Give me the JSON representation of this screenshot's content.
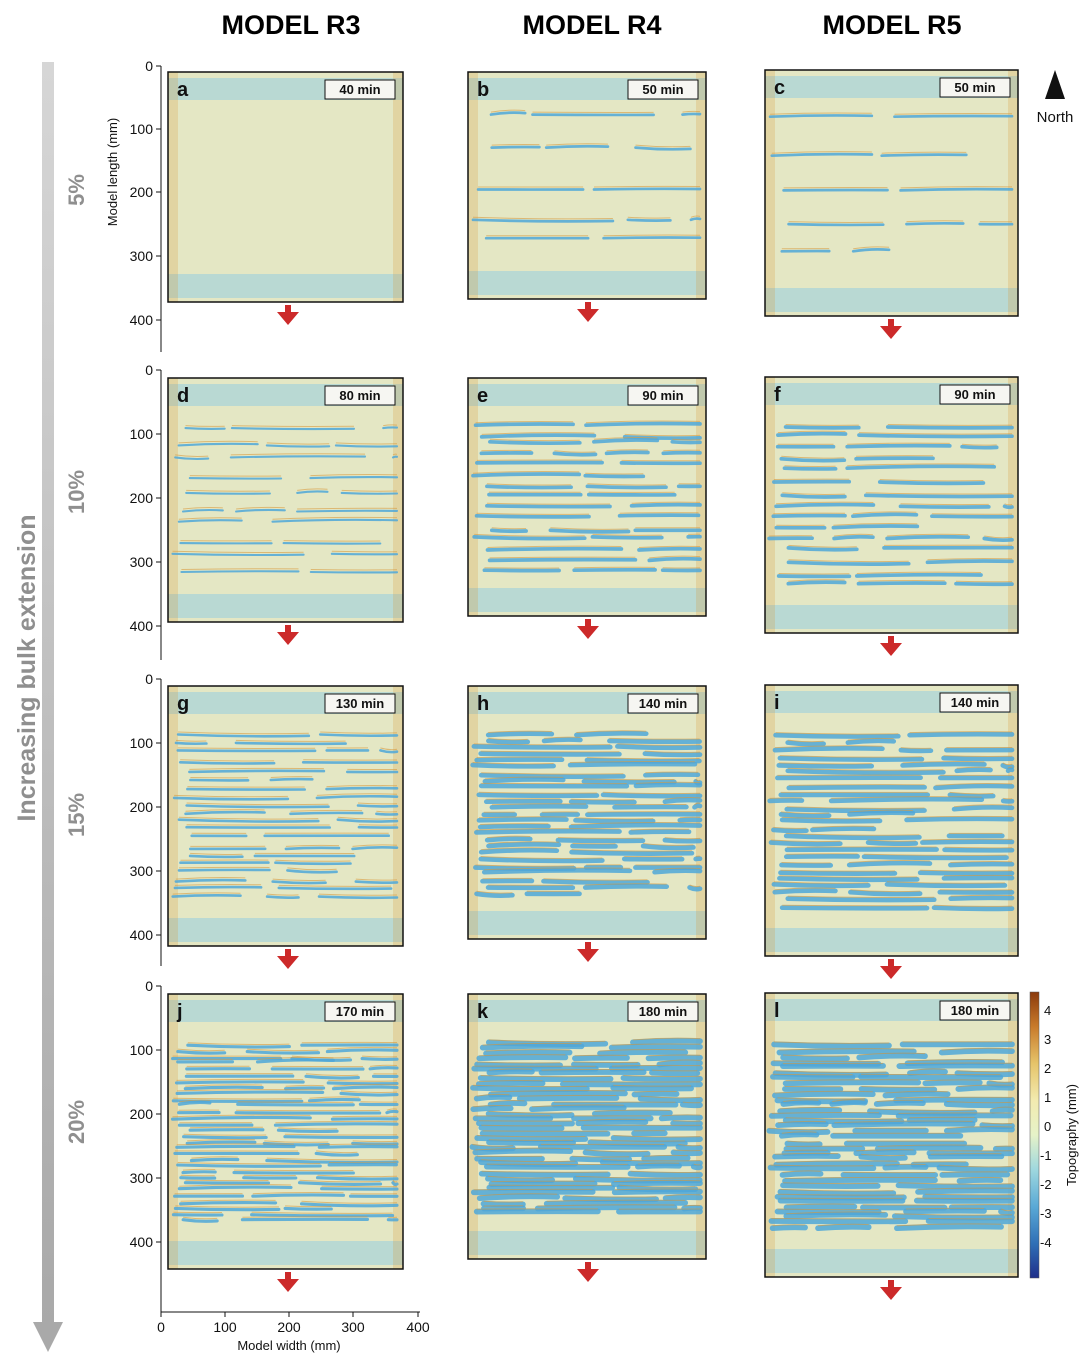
{
  "columns": [
    "MODEL R3",
    "MODEL R4",
    "MODEL R5"
  ],
  "side_label": "Increasing bulk extension",
  "rows": [
    {
      "extension": "5%",
      "panels": [
        {
          "letter": "a",
          "time": "40 min"
        },
        {
          "letter": "b",
          "time": "50 min"
        },
        {
          "letter": "c",
          "time": "50 min"
        }
      ]
    },
    {
      "extension": "10%",
      "panels": [
        {
          "letter": "d",
          "time": "80 min"
        },
        {
          "letter": "e",
          "time": "90 min"
        },
        {
          "letter": "f",
          "time": "90 min"
        }
      ]
    },
    {
      "extension": "15%",
      "panels": [
        {
          "letter": "g",
          "time": "130 min"
        },
        {
          "letter": "h",
          "time": "140 min"
        },
        {
          "letter": "i",
          "time": "140 min"
        }
      ]
    },
    {
      "extension": "20%",
      "panels": [
        {
          "letter": "j",
          "time": "170 min"
        },
        {
          "letter": "k",
          "time": "180 min"
        },
        {
          "letter": "l",
          "time": "180 min"
        }
      ]
    }
  ],
  "y_axis": {
    "label": "Model length (mm)",
    "ticks_by_row": [
      [
        "0",
        "100",
        "200",
        "300",
        "400"
      ],
      [
        "0",
        "100",
        "200",
        "300",
        "400"
      ],
      [
        "0",
        "100",
        "200",
        "300",
        "400"
      ],
      [
        "0",
        "100",
        "200",
        "300",
        "400"
      ]
    ]
  },
  "x_axis": {
    "label": "Model width (mm)",
    "ticks": [
      "0",
      "100",
      "200",
      "300",
      "400"
    ]
  },
  "north": {
    "label": "North"
  },
  "colorbar": {
    "label": "Topography (mm)",
    "ticks": [
      "4",
      "3",
      "2",
      "1",
      "0",
      "-1",
      "-2",
      "-3",
      "-4"
    ],
    "colors": [
      "#8b3a0c",
      "#c87a2a",
      "#e6c46a",
      "#f2ebb0",
      "#e6f2c8",
      "#9fd8de",
      "#5aa9d6",
      "#2f6fb6",
      "#1f2f8a"
    ]
  },
  "colors": {
    "panel_base": "#e4e7c4",
    "fault_blue": "#4fa7d8",
    "fault_orange": "#d89a3c",
    "stripe_blue": "#96cde0",
    "gray_arrow": "#bdbdbd",
    "red_arrow": "#cc2a2a"
  }
}
